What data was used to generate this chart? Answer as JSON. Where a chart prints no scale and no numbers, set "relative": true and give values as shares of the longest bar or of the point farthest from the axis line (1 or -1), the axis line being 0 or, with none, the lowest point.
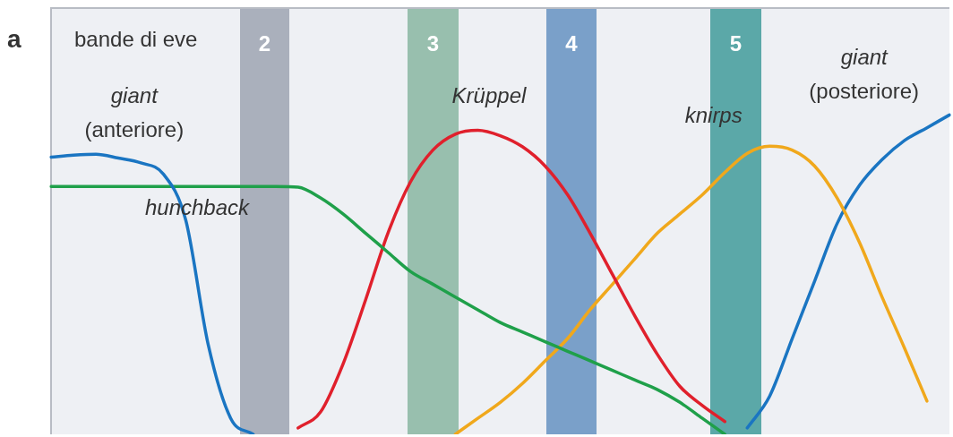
{
  "chart_data": {
    "type": "line",
    "relative": true,
    "tick_labels": false,
    "legend": false,
    "line_style": "solid",
    "categories": [
      null,
      null,
      null,
      null,
      null,
      null,
      null,
      null,
      null,
      null,
      null,
      null,
      null,
      null,
      null,
      null,
      null,
      null,
      null,
      null,
      null,
      null,
      null,
      null,
      null,
      null,
      null,
      null,
      null,
      null,
      null,
      null,
      null,
      null,
      null,
      null,
      null,
      null,
      null,
      null,
      null
    ],
    "annotations": [
      "a",
      "bande di eve",
      "2",
      "3",
      "4",
      "5"
    ],
    "series": [
      {
        "name": "giant (anteriore)",
        "color": "#1a75c2",
        "values": [
          0.868,
          0.874,
          0.877,
          0.865,
          0.85,
          0.815,
          0.67,
          0.28,
          0.05,
          0,
          null,
          null,
          null,
          null,
          null,
          null,
          null,
          null,
          null,
          null,
          null,
          null,
          null,
          null,
          null,
          null,
          null,
          null,
          null,
          null,
          null,
          null,
          null,
          null,
          null,
          null,
          null,
          null,
          null,
          null,
          null
        ]
      },
      {
        "name": "hunchback",
        "color": "#1fa04a",
        "values": [
          0.776,
          0.776,
          0.776,
          0.776,
          0.776,
          0.776,
          0.776,
          0.776,
          0.776,
          0.776,
          0.776,
          0.774,
          0.74,
          0.69,
          0.63,
          0.57,
          0.51,
          0.47,
          0.43,
          0.39,
          0.35,
          0.32,
          0.29,
          0.26,
          0.23,
          0.2,
          0.17,
          0.14,
          0.1,
          0.05,
          0,
          null,
          null,
          null,
          null,
          null,
          null,
          null,
          null,
          null,
          null
        ]
      },
      {
        "name": "Krüppel",
        "color": "#e0202c",
        "values": [
          null,
          null,
          null,
          null,
          null,
          null,
          null,
          null,
          null,
          null,
          null,
          0.02,
          0.07,
          0.22,
          0.42,
          0.63,
          0.79,
          0.89,
          0.94,
          0.952,
          0.935,
          0.9,
          0.84,
          0.75,
          0.63,
          0.5,
          0.37,
          0.25,
          0.15,
          0.09,
          0.04,
          null,
          null,
          null,
          null,
          null,
          null,
          null,
          null,
          null,
          null
        ]
      },
      {
        "name": "knirps",
        "color": "#f0a81c",
        "values": [
          null,
          null,
          null,
          null,
          null,
          null,
          null,
          null,
          null,
          null,
          null,
          null,
          null,
          null,
          null,
          null,
          null,
          null,
          0,
          0.05,
          0.1,
          0.16,
          0.23,
          0.3,
          0.39,
          0.47,
          0.55,
          0.63,
          0.69,
          0.75,
          0.82,
          0.88,
          0.902,
          0.89,
          0.84,
          0.74,
          0.6,
          0.43,
          0.27,
          0.104,
          null
        ]
      },
      {
        "name": "giant (posteriore)",
        "color": "#1a75c2",
        "values": [
          null,
          null,
          null,
          null,
          null,
          null,
          null,
          null,
          null,
          null,
          null,
          null,
          null,
          null,
          null,
          null,
          null,
          null,
          null,
          null,
          null,
          null,
          null,
          null,
          null,
          null,
          null,
          null,
          null,
          null,
          null,
          0.02,
          0.12,
          0.3,
          0.48,
          0.66,
          0.78,
          0.86,
          0.92,
          0.96,
          1.0
        ]
      }
    ]
  }
}
